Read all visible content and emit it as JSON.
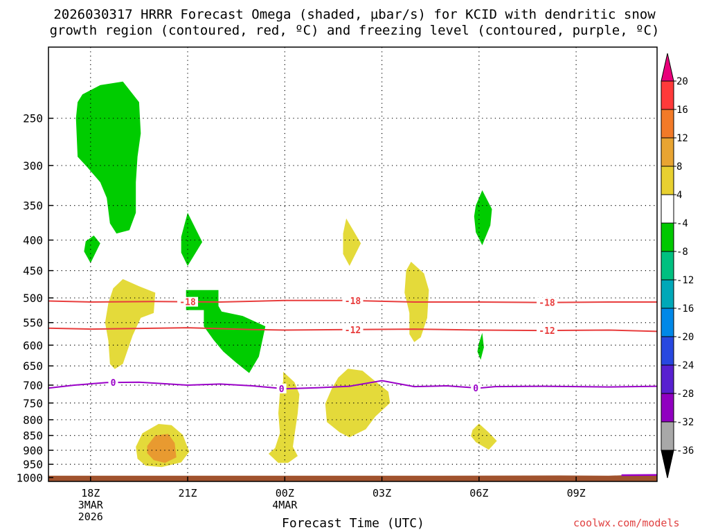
{
  "title_line1": "2026030317 HRRR Forecast Omega (shaded, µbar/s) for KCID with dendritic snow",
  "title_line2": "growth region (contoured, red, ºC) and freezing level (contoured, purple, ºC)",
  "xlabel": "Forecast Time (UTC)",
  "credit": "coolwx.com/models",
  "colors": {
    "green": "#00cc00",
    "yellow": "#e4da3a",
    "orange": "#e89a30",
    "ground": "#a0522d",
    "dgz_line": "#e83c3c",
    "freezing_line": "#9a00c8"
  },
  "chart_data": {
    "type": "time-height cross section",
    "x_unit": "hours after 2026-03-03 17Z",
    "x_range": [
      -0.3,
      18.5
    ],
    "y_unit": "hPa",
    "y_range": [
      1015,
      190
    ],
    "y_ticks": [
      250,
      300,
      350,
      400,
      450,
      500,
      550,
      600,
      650,
      700,
      750,
      800,
      850,
      900,
      950,
      1000
    ],
    "x_ticks": [
      {
        "x": 1,
        "label": "18Z",
        "sub1": "3MAR",
        "sub2": "2026"
      },
      {
        "x": 4,
        "label": "21Z",
        "sub1": "",
        "sub2": ""
      },
      {
        "x": 7,
        "label": "00Z",
        "sub1": "4MAR",
        "sub2": ""
      },
      {
        "x": 10,
        "label": "03Z",
        "sub1": "",
        "sub2": ""
      },
      {
        "x": 13,
        "label": "06Z",
        "sub1": "",
        "sub2": ""
      },
      {
        "x": 16,
        "label": "09Z",
        "sub1": "",
        "sub2": ""
      }
    ],
    "colorbar": {
      "labels": [
        "20",
        "16",
        "12",
        "8",
        "4",
        "-4",
        "-8",
        "-12",
        "-16",
        "-20",
        "-24",
        "-28",
        "-32",
        "-36"
      ],
      "top_triangle": "#e8007a",
      "bottom_triangle": "#000000",
      "colors": [
        "#ff3a3a",
        "#f27a28",
        "#e8a432",
        "#e8d030",
        "#ffffff",
        "#00c800",
        "#00c080",
        "#00a8b8",
        "#0088e8",
        "#2848e0",
        "#5820d0",
        "#9000c0",
        "#a8a8a8"
      ]
    },
    "ground_pressure": [
      {
        "x": -0.3,
        "p": 993
      },
      {
        "x": 11.5,
        "p": 993
      },
      {
        "x": 15.5,
        "p": 992
      },
      {
        "x": 17.0,
        "p": 993
      },
      {
        "x": 17.5,
        "p": 991
      },
      {
        "x": 18.5,
        "p": 990
      }
    ],
    "dgz_contours": [
      {
        "label": "-18",
        "label_x": [
          4.0,
          9.1,
          15.1
        ],
        "points": [
          [
            -0.3,
            506
          ],
          [
            1,
            508
          ],
          [
            3,
            507
          ],
          [
            5,
            508
          ],
          [
            7,
            505
          ],
          [
            9,
            505
          ],
          [
            11,
            508
          ],
          [
            13,
            508
          ],
          [
            15,
            509
          ],
          [
            17,
            508
          ],
          [
            18.5,
            508
          ]
        ]
      },
      {
        "label": "-12",
        "label_x": [
          9.1,
          15.1
        ],
        "points": [
          [
            -0.3,
            562
          ],
          [
            1,
            564
          ],
          [
            4,
            561
          ],
          [
            6,
            565
          ],
          [
            7,
            566
          ],
          [
            9,
            565
          ],
          [
            11,
            564
          ],
          [
            13,
            566
          ],
          [
            15,
            567
          ],
          [
            17,
            566
          ],
          [
            18.5,
            569
          ]
        ]
      }
    ],
    "freezing_contour": {
      "label": "0",
      "label_x": [
        1.7,
        6.9,
        12.9
      ],
      "points": [
        [
          -0.3,
          708
        ],
        [
          0.5,
          700
        ],
        [
          1.5,
          693
        ],
        [
          2.5,
          692
        ],
        [
          4,
          700
        ],
        [
          5,
          697
        ],
        [
          6,
          702
        ],
        [
          7,
          710
        ],
        [
          8,
          707
        ],
        [
          9,
          703
        ],
        [
          10,
          688
        ],
        [
          11,
          704
        ],
        [
          12,
          702
        ],
        [
          13,
          708
        ],
        [
          13.5,
          704
        ],
        [
          15,
          703
        ],
        [
          16,
          704
        ],
        [
          17,
          705
        ],
        [
          18.5,
          703
        ]
      ]
    },
    "omega_regions": [
      {
        "level": "-8",
        "color": "green",
        "points": [
          [
            0.75,
            228
          ],
          [
            1.3,
            220
          ],
          [
            2.0,
            217
          ],
          [
            2.5,
            235
          ],
          [
            2.55,
            265
          ],
          [
            2.45,
            290
          ],
          [
            2.4,
            320
          ],
          [
            2.4,
            360
          ],
          [
            2.2,
            385
          ],
          [
            1.8,
            390
          ],
          [
            1.6,
            375
          ],
          [
            1.5,
            340
          ],
          [
            1.3,
            320
          ],
          [
            0.9,
            302
          ],
          [
            0.6,
            290
          ],
          [
            0.55,
            250
          ],
          [
            0.6,
            235
          ]
        ]
      },
      {
        "level": "-8",
        "color": "green",
        "points": [
          [
            0.85,
            402
          ],
          [
            1.1,
            393
          ],
          [
            1.3,
            405
          ],
          [
            1.0,
            437
          ],
          [
            0.8,
            418
          ]
        ]
      },
      {
        "level": "-8",
        "color": "green",
        "points": [
          [
            4.0,
            360
          ],
          [
            4.45,
            403
          ],
          [
            4.0,
            442
          ],
          [
            3.8,
            420
          ],
          [
            3.8,
            395
          ]
        ]
      },
      {
        "level": "-8",
        "color": "green",
        "points": [
          [
            3.95,
            485
          ],
          [
            4.95,
            485
          ],
          [
            4.95,
            516
          ],
          [
            5.05,
            527
          ],
          [
            5.7,
            536
          ],
          [
            6.4,
            558
          ],
          [
            6.2,
            627
          ],
          [
            5.9,
            668
          ],
          [
            5.5,
            642
          ],
          [
            5.1,
            615
          ],
          [
            4.8,
            588
          ],
          [
            4.5,
            558
          ],
          [
            4.5,
            524
          ],
          [
            3.95,
            524
          ]
        ]
      },
      {
        "level": "-8",
        "color": "green",
        "points": [
          [
            12.9,
            350
          ],
          [
            13.1,
            330
          ],
          [
            13.4,
            355
          ],
          [
            13.35,
            378
          ],
          [
            13.1,
            408
          ],
          [
            12.9,
            388
          ],
          [
            12.85,
            365
          ]
        ]
      },
      {
        "level": "-8",
        "color": "green",
        "points": [
          [
            13.0,
            595
          ],
          [
            13.1,
            572
          ],
          [
            13.15,
            605
          ],
          [
            13.05,
            635
          ],
          [
            12.95,
            615
          ]
        ]
      },
      {
        "level": "4",
        "color": "yellow",
        "points": [
          [
            2.0,
            465
          ],
          [
            2.5,
            478
          ],
          [
            3.0,
            490
          ],
          [
            2.95,
            530
          ],
          [
            2.55,
            540
          ],
          [
            2.3,
            578
          ],
          [
            2.0,
            645
          ],
          [
            1.75,
            658
          ],
          [
            1.6,
            645
          ],
          [
            1.55,
            590
          ],
          [
            1.45,
            550
          ],
          [
            1.55,
            510
          ],
          [
            1.7,
            482
          ]
        ]
      },
      {
        "level": "4",
        "color": "yellow",
        "points": [
          [
            8.9,
            368
          ],
          [
            9.35,
            405
          ],
          [
            9.0,
            442
          ],
          [
            8.8,
            422
          ],
          [
            8.8,
            390
          ]
        ]
      },
      {
        "level": "4",
        "color": "yellow",
        "points": [
          [
            10.9,
            435
          ],
          [
            11.3,
            455
          ],
          [
            11.45,
            485
          ],
          [
            11.4,
            540
          ],
          [
            11.2,
            582
          ],
          [
            11.0,
            593
          ],
          [
            10.85,
            575
          ],
          [
            10.85,
            530
          ],
          [
            10.7,
            490
          ],
          [
            10.75,
            450
          ]
        ]
      },
      {
        "level": "4",
        "color": "yellow",
        "points": [
          [
            6.95,
            665
          ],
          [
            7.3,
            692
          ],
          [
            7.45,
            725
          ],
          [
            7.4,
            780
          ],
          [
            7.3,
            850
          ],
          [
            7.25,
            888
          ],
          [
            7.4,
            920
          ],
          [
            7.1,
            945
          ],
          [
            6.8,
            945
          ],
          [
            6.5,
            912
          ],
          [
            6.7,
            892
          ],
          [
            6.85,
            842
          ],
          [
            6.8,
            780
          ],
          [
            6.85,
            720
          ],
          [
            6.95,
            690
          ]
        ]
      },
      {
        "level": "4",
        "color": "yellow",
        "points": [
          [
            8.95,
            657
          ],
          [
            9.4,
            662
          ],
          [
            9.8,
            690
          ],
          [
            10.2,
            718
          ],
          [
            10.25,
            750
          ],
          [
            9.8,
            790
          ],
          [
            9.5,
            830
          ],
          [
            9.0,
            856
          ],
          [
            8.7,
            840
          ],
          [
            8.3,
            807
          ],
          [
            8.25,
            752
          ],
          [
            8.45,
            710
          ],
          [
            8.65,
            680
          ]
        ]
      },
      {
        "level": "4",
        "color": "yellow",
        "points": [
          [
            2.4,
            888
          ],
          [
            2.6,
            843
          ],
          [
            3.1,
            813
          ],
          [
            3.5,
            817
          ],
          [
            3.85,
            848
          ],
          [
            4.05,
            905
          ],
          [
            3.8,
            943
          ],
          [
            3.2,
            960
          ],
          [
            2.7,
            955
          ],
          [
            2.45,
            930
          ]
        ]
      },
      {
        "level": "4",
        "color": "yellow",
        "points": [
          [
            12.8,
            832
          ],
          [
            13.0,
            812
          ],
          [
            13.3,
            840
          ],
          [
            13.55,
            868
          ],
          [
            13.3,
            898
          ],
          [
            12.9,
            872
          ],
          [
            12.75,
            852
          ]
        ]
      },
      {
        "level": "8",
        "color": "orange",
        "points": [
          [
            2.75,
            885
          ],
          [
            3.0,
            850
          ],
          [
            3.4,
            845
          ],
          [
            3.6,
            875
          ],
          [
            3.65,
            925
          ],
          [
            3.3,
            945
          ],
          [
            2.95,
            935
          ],
          [
            2.75,
            910
          ]
        ]
      },
      {
        "level": "12",
        "color": "orange",
        "points": [
          [
            3.05,
            897
          ],
          [
            3.2,
            870
          ],
          [
            3.35,
            885
          ],
          [
            3.35,
            915
          ],
          [
            3.2,
            925
          ],
          [
            3.05,
            912
          ]
        ]
      }
    ]
  }
}
